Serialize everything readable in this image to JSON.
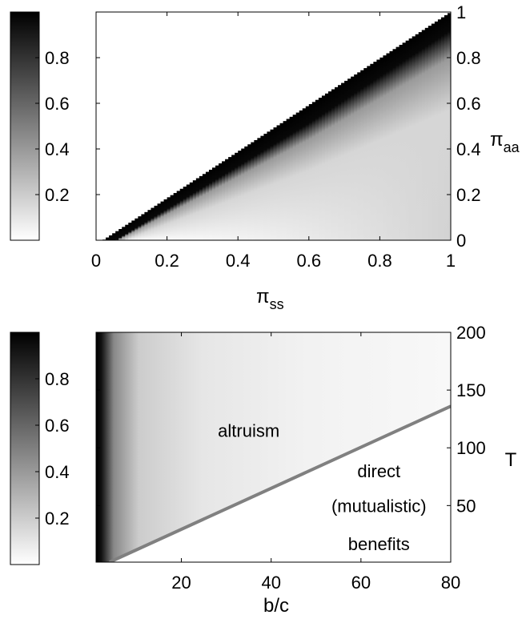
{
  "chart_data": [
    {
      "type": "heatmap",
      "colormap": "gray (1 = black, 0 = white)",
      "xlabel": "π",
      "xlabel_sub": "ss",
      "ylabel": "π",
      "ylabel_sub": "aa",
      "xlim": [
        0,
        1
      ],
      "ylim": [
        0,
        1
      ],
      "xticks": [
        0,
        0.2,
        0.4,
        0.6,
        0.8,
        1
      ],
      "xtick_labels": [
        "0",
        "0.2",
        "0.4",
        "0.6",
        "0.8",
        "1"
      ],
      "yticks": [
        0,
        0.2,
        0.4,
        0.6,
        0.8,
        1
      ],
      "ytick_labels": [
        "0",
        "0.2",
        "0.4",
        "0.6",
        "0.8",
        "1"
      ],
      "yaxis_side": "right",
      "colorbar": {
        "range": [
          0,
          1
        ],
        "ticks": [
          0.2,
          0.4,
          0.6,
          0.8
        ],
        "tick_labels": [
          "0.2",
          "0.4",
          "0.6",
          "0.8"
        ],
        "placement": "left"
      },
      "surface": {
        "description_values": "value ≈ 1 (black) along the diagonal π_aa = π_ss; 0 above the diagonal; decays to ≈ 0 toward the bottom-right",
        "boundary": {
          "x": [
            0.02,
            1.0
          ],
          "y": [
            0,
            1.0
          ]
        },
        "black_band_width": 0.08
      }
    },
    {
      "type": "heatmap",
      "colormap": "gray (1 = black, 0 = white)",
      "xlabel": "b/c",
      "ylabel": "T",
      "xlim": [
        1,
        80
      ],
      "ylim": [
        1,
        200
      ],
      "xticks": [
        20,
        40,
        60,
        80
      ],
      "xtick_labels": [
        "20",
        "40",
        "60",
        "80"
      ],
      "yticks": [
        50,
        100,
        150,
        200
      ],
      "ytick_labels": [
        "50",
        "100",
        "150",
        "200"
      ],
      "yaxis_side": "right",
      "colorbar": {
        "range": [
          0,
          1
        ],
        "ticks": [
          0.2,
          0.4,
          0.6,
          0.8
        ],
        "tick_labels": [
          "0.2",
          "0.4",
          "0.6",
          "0.8"
        ],
        "placement": "left"
      },
      "boundary_line": {
        "x": [
          4,
          80
        ],
        "y": [
          1,
          136
        ],
        "color": "#808080"
      },
      "regions": [
        {
          "label": "altruism",
          "x": 35,
          "y": 115
        },
        {
          "label_lines": [
            "direct",
            "(mutualistic)",
            "benefits"
          ],
          "x": 64,
          "y": [
            80,
            50,
            17
          ]
        }
      ],
      "surface": {
        "description_values": "value ≈ 1 (black) at small b/c (≈1–3), decaying quickly to light gray; near 0 (white) below the boundary line"
      }
    }
  ]
}
